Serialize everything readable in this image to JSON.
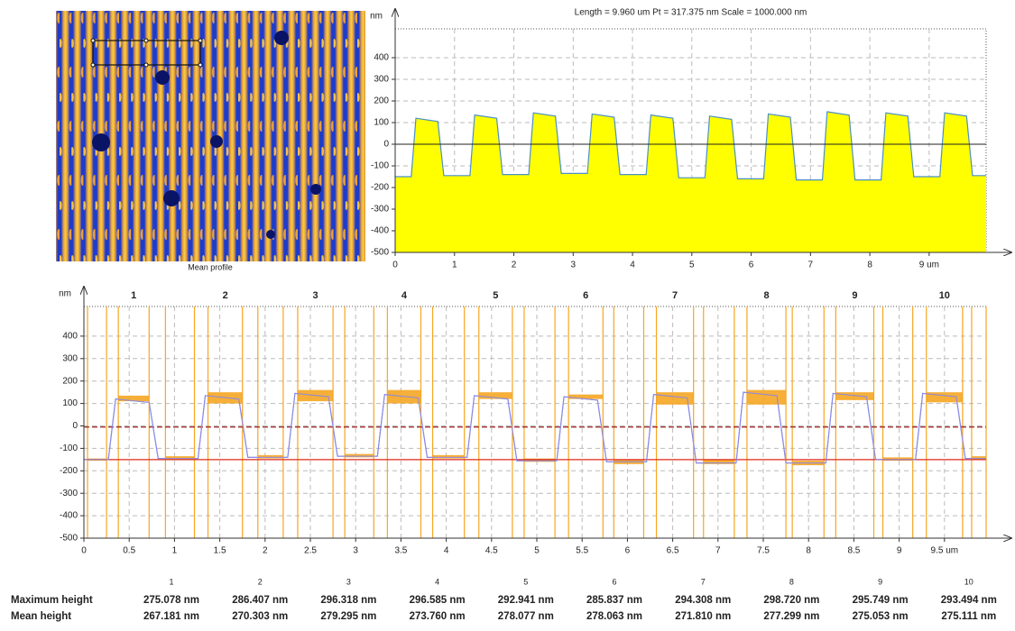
{
  "image_caption": "Mean profile",
  "chart_data": [
    {
      "type": "area",
      "title": "Length = 9.960 um  Pt = 317.375 nm  Scale = 1000.000 nm",
      "y_label": "nm",
      "x": [
        0,
        0.27,
        0.35,
        0.72,
        0.82,
        1.26,
        1.34,
        1.71,
        1.81,
        2.25,
        2.33,
        2.7,
        2.8,
        3.24,
        3.32,
        3.69,
        3.79,
        4.23,
        4.31,
        4.68,
        4.78,
        5.22,
        5.3,
        5.67,
        5.77,
        6.21,
        6.29,
        6.66,
        6.76,
        7.2,
        7.28,
        7.65,
        7.75,
        8.19,
        8.27,
        8.64,
        8.74,
        9.18,
        9.26,
        9.63,
        9.73,
        9.96
      ],
      "series": [
        {
          "color": "#4a90c8",
          "fill": "#ffff00",
          "values": [
            -150,
            -150,
            120,
            105,
            -145,
            -145,
            135,
            120,
            -140,
            -140,
            145,
            130,
            -135,
            -135,
            140,
            125,
            -140,
            -140,
            135,
            120,
            -155,
            -155,
            130,
            115,
            -160,
            -160,
            140,
            125,
            -165,
            -165,
            150,
            135,
            -165,
            -165,
            145,
            130,
            -150,
            -150,
            145,
            130,
            -145,
            -145
          ]
        }
      ],
      "xlim": [
        0,
        9.96
      ],
      "ylim": [
        -500,
        500
      ],
      "xticks": [
        0,
        1,
        2,
        3,
        4,
        5,
        6,
        7,
        8,
        {
          "value": 9,
          "label": "9 um"
        }
      ],
      "yticks": [
        -500,
        -400,
        -300,
        -200,
        -100,
        0,
        100,
        200,
        300,
        400
      ],
      "grid": true,
      "zero_line": true
    },
    {
      "type": "line",
      "y_label": "nm",
      "step_labels": [
        "1",
        "2",
        "3",
        "4",
        "5",
        "6",
        "7",
        "8",
        "9",
        "10"
      ],
      "x": [
        0,
        0.27,
        0.35,
        0.72,
        0.82,
        1.26,
        1.34,
        1.71,
        1.81,
        2.25,
        2.33,
        2.7,
        2.8,
        3.24,
        3.32,
        3.69,
        3.79,
        4.23,
        4.31,
        4.68,
        4.78,
        5.22,
        5.3,
        5.67,
        5.77,
        6.21,
        6.29,
        6.66,
        6.76,
        7.2,
        7.28,
        7.65,
        7.75,
        8.19,
        8.27,
        8.64,
        8.74,
        9.18,
        9.26,
        9.63,
        9.73,
        9.96
      ],
      "series": [
        {
          "color": "#8a8ae6",
          "values": [
            -150,
            -150,
            120,
            105,
            -145,
            -145,
            135,
            120,
            -140,
            -140,
            145,
            130,
            -135,
            -135,
            140,
            125,
            -140,
            -140,
            135,
            120,
            -155,
            -155,
            130,
            115,
            -160,
            -160,
            140,
            125,
            -165,
            -165,
            150,
            135,
            -165,
            -165,
            145,
            130,
            -150,
            -150,
            145,
            130,
            -145,
            -145
          ]
        }
      ],
      "high_boxes": [
        {
          "x": [
            0.38,
            0.72
          ],
          "y": [
            110,
            135
          ]
        },
        {
          "x": [
            1.37,
            1.75
          ],
          "y": [
            100,
            150
          ]
        },
        {
          "x": [
            2.36,
            2.75
          ],
          "y": [
            110,
            160
          ]
        },
        {
          "x": [
            3.35,
            3.72
          ],
          "y": [
            100,
            160
          ]
        },
        {
          "x": [
            4.36,
            4.73
          ],
          "y": [
            120,
            150
          ]
        },
        {
          "x": [
            5.35,
            5.73
          ],
          "y": [
            120,
            140
          ]
        },
        {
          "x": [
            6.32,
            6.73
          ],
          "y": [
            95,
            150
          ]
        },
        {
          "x": [
            7.32,
            7.75
          ],
          "y": [
            95,
            160
          ]
        },
        {
          "x": [
            8.3,
            8.72
          ],
          "y": [
            115,
            150
          ]
        },
        {
          "x": [
            9.3,
            9.7
          ],
          "y": [
            105,
            150
          ]
        }
      ],
      "low_boxes": [
        {
          "x": [
            0.04,
            0.25
          ],
          "y": [
            -155,
            -145
          ]
        },
        {
          "x": [
            0.9,
            1.22
          ],
          "y": [
            -150,
            -135
          ]
        },
        {
          "x": [
            1.92,
            2.2
          ],
          "y": [
            -145,
            -130
          ]
        },
        {
          "x": [
            2.88,
            3.2
          ],
          "y": [
            -140,
            -125
          ]
        },
        {
          "x": [
            3.85,
            4.2
          ],
          "y": [
            -145,
            -130
          ]
        },
        {
          "x": [
            4.86,
            5.2
          ],
          "y": [
            -160,
            -145
          ]
        },
        {
          "x": [
            5.85,
            6.18
          ],
          "y": [
            -170,
            -150
          ]
        },
        {
          "x": [
            6.84,
            7.18
          ],
          "y": [
            -170,
            -150
          ]
        },
        {
          "x": [
            7.82,
            8.17
          ],
          "y": [
            -175,
            -155
          ]
        },
        {
          "x": [
            8.82,
            9.15
          ],
          "y": [
            -155,
            -140
          ]
        },
        {
          "x": [
            9.8,
            9.96
          ],
          "y": [
            -150,
            -135
          ]
        }
      ],
      "box_color": "#f5a623",
      "ref_lines": [
        {
          "value": -150,
          "color": "#e02a1a",
          "style": "solid"
        },
        {
          "value": -5,
          "color": "#a02020",
          "style": "dashed"
        }
      ],
      "xlim": [
        0,
        9.96
      ],
      "ylim": [
        -500,
        500
      ],
      "xticks": [
        0,
        0.5,
        1,
        1.5,
        2,
        2.5,
        3,
        3.5,
        4,
        4.5,
        5,
        5.5,
        6,
        6.5,
        7,
        7.5,
        8,
        8.5,
        9,
        {
          "value": 9.5,
          "label": "9.5 um"
        }
      ],
      "yticks": [
        -500,
        -400,
        -300,
        -200,
        -100,
        0,
        100,
        200,
        300,
        400
      ],
      "grid": true
    }
  ],
  "table": {
    "header": [
      "1",
      "2",
      "3",
      "4",
      "5",
      "6",
      "7",
      "8",
      "9",
      "10"
    ],
    "rows": [
      [
        "Maximum height",
        "275.078 nm",
        "286.407 nm",
        "296.318 nm",
        "296.585 nm",
        "292.941 nm",
        "285.837 nm",
        "294.308 nm",
        "298.720 nm",
        "295.749 nm",
        "293.494 nm"
      ],
      [
        "Mean height",
        "267.181 nm",
        "270.303 nm",
        "279.295 nm",
        "273.760 nm",
        "278.077 nm",
        "278.063 nm",
        "271.810 nm",
        "277.299 nm",
        "275.053 nm",
        "275.111 nm"
      ]
    ]
  }
}
